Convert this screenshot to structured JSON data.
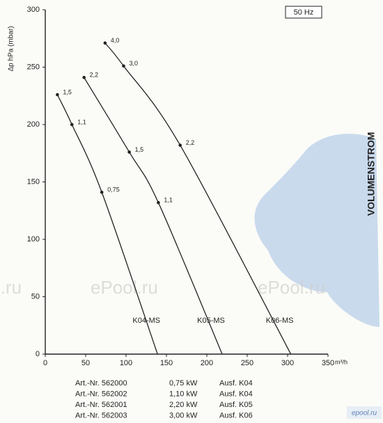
{
  "chart_data": {
    "type": "line",
    "y_label": "Δp hPa (mbar)",
    "x_unit": "m³/h",
    "frequency": "50 Hz",
    "side_label": "VOLUMENSTROM",
    "xlim": [
      0,
      350
    ],
    "xticks": [
      0,
      50,
      100,
      150,
      200,
      250,
      300,
      350
    ],
    "ylim": [
      0,
      300
    ],
    "yticks": [
      0,
      50,
      100,
      150,
      200,
      250,
      300
    ],
    "grid": false,
    "color": "#222222",
    "series": [
      {
        "name": "K04-MS",
        "x": [
          15,
          33,
          70,
          139
        ],
        "values": [
          226,
          200,
          141,
          0
        ],
        "point_labels": [
          "1,5",
          "1,1",
          "0,75",
          null
        ]
      },
      {
        "name": "K05-MS",
        "x": [
          48,
          104,
          140,
          219
        ],
        "values": [
          241,
          176,
          132,
          0
        ],
        "point_labels": [
          "2,2",
          "1,5",
          "1,1",
          null
        ]
      },
      {
        "name": "K06-MS",
        "x": [
          74,
          97,
          167,
          304
        ],
        "values": [
          271,
          251,
          182,
          0
        ],
        "point_labels": [
          "4,0",
          "3,0",
          "2,2",
          null
        ]
      }
    ]
  },
  "table": {
    "rows": [
      [
        "Art.-Nr. 562000",
        "0,75 kW",
        "Ausf. K04"
      ],
      [
        "Art.-Nr. 562002",
        "1,10 kW",
        "Ausf. K04"
      ],
      [
        "Art.-Nr. 562001",
        "2,20 kW",
        "Ausf. K05"
      ],
      [
        "Art.-Nr. 562003",
        "3,00 kW",
        "Ausf. K06"
      ]
    ]
  },
  "watermarks": [
    "l.ru",
    "ePool.ru",
    "ePool.ru",
    "epool.ru"
  ]
}
